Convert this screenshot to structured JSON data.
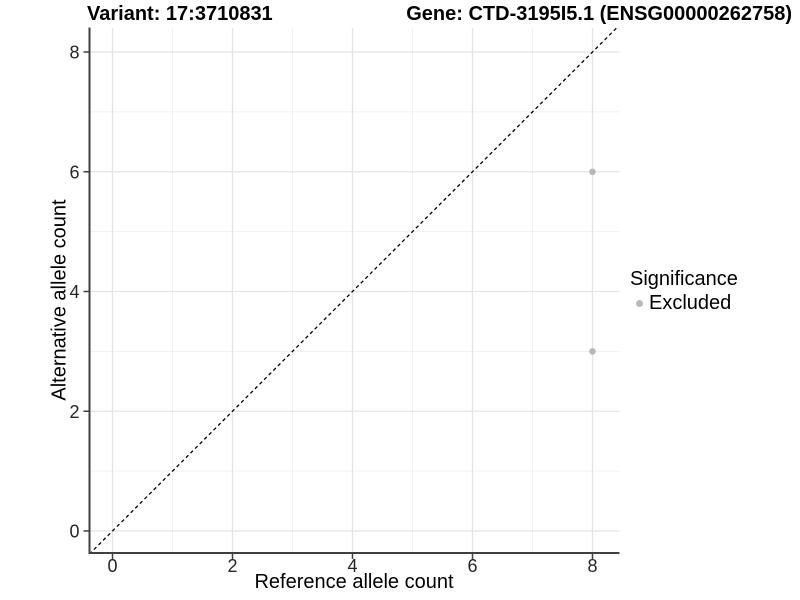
{
  "chart_data": {
    "type": "scatter",
    "title_left": "Variant: 17:3710831",
    "title_right": "Gene: CTD-3195I5.1 (ENSG00000262758)",
    "xlabel": "Reference allele count",
    "ylabel": "Alternative allele count",
    "xlim": [
      -0.38,
      8.45
    ],
    "ylim": [
      -0.37,
      8.4
    ],
    "x_major_ticks": [
      0,
      2,
      4,
      6,
      8
    ],
    "x_minor_ticks": [
      1,
      3,
      5,
      7
    ],
    "y_major_ticks": [
      0,
      2,
      4,
      6,
      8
    ],
    "y_minor_ticks": [
      1,
      3,
      5,
      7
    ],
    "grid": true,
    "reference_line": {
      "type": "identity",
      "style": "dashed",
      "color": "#000000"
    },
    "series": [
      {
        "name": "Excluded",
        "color": "#b8b8b8",
        "points": [
          {
            "x": 8,
            "y": 6
          },
          {
            "x": 8,
            "y": 3
          }
        ]
      }
    ],
    "legend": {
      "title": "Significance",
      "position": "right",
      "items": [
        {
          "label": "Excluded",
          "color": "#b8b8b8"
        }
      ]
    }
  },
  "colors": {
    "background": "#ffffff",
    "grid_major": "#e4e4e4",
    "grid_minor": "#f1f1f1",
    "axis_line": "#404040",
    "tick_label": "#262626",
    "point": "#b8b8b8",
    "reference_line": "#000000"
  }
}
